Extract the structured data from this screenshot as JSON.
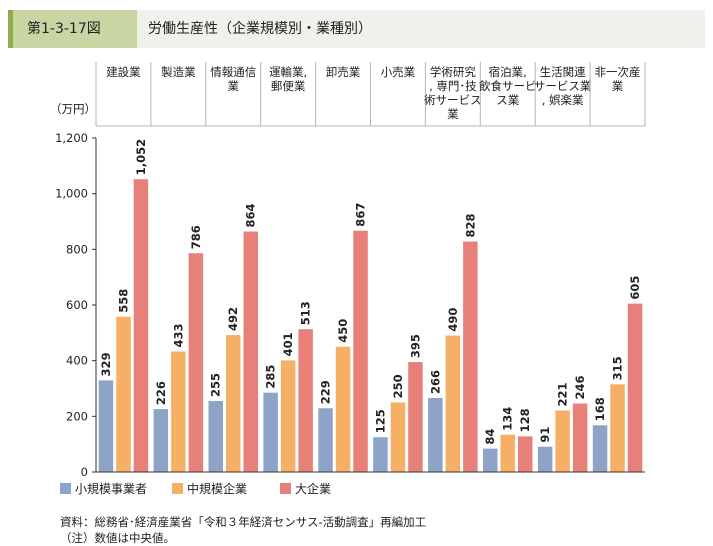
{
  "header": {
    "figure_no": "第1-3-17図",
    "title": "労働生産性（企業規模別・業種別）"
  },
  "chart_data": {
    "type": "bar",
    "ylabel": "（万円）",
    "ylim": [
      0,
      1200
    ],
    "yticks": [
      0,
      200,
      400,
      600,
      800,
      1000,
      1200
    ],
    "ytick_labels": [
      "0",
      "200",
      "400",
      "600",
      "800",
      "1,000",
      "1,200"
    ],
    "grid": false,
    "legend_position": "bottom-left",
    "categories": [
      [
        "建設業"
      ],
      [
        "製造業"
      ],
      [
        "情報通信",
        "業"
      ],
      [
        "運輸業,",
        "郵便業"
      ],
      [
        "卸売業"
      ],
      [
        "小売業"
      ],
      [
        "学術研究",
        ", 専門･技",
        "術サービス",
        "業"
      ],
      [
        "宿泊業,",
        "飲食サービ",
        "ス業"
      ],
      [
        "生活関連",
        "サービス業",
        ", 娯楽業"
      ],
      [
        "非一次産",
        "業"
      ]
    ],
    "series": [
      {
        "name": "小規模事業者",
        "color": "#8ea3c8",
        "values": [
          329,
          226,
          255,
          285,
          229,
          125,
          266,
          84,
          91,
          168
        ],
        "labels": [
          "329",
          "226",
          "255",
          "285",
          "229",
          "125",
          "266",
          "84",
          "91",
          "168"
        ]
      },
      {
        "name": "中規模企業",
        "color": "#f5b066",
        "values": [
          558,
          433,
          492,
          401,
          450,
          250,
          490,
          134,
          221,
          315
        ],
        "labels": [
          "558",
          "433",
          "492",
          "401",
          "450",
          "250",
          "490",
          "134",
          "221",
          "315"
        ]
      },
      {
        "name": "大企業",
        "color": "#e8807a",
        "values": [
          1052,
          786,
          864,
          513,
          867,
          395,
          828,
          128,
          246,
          605
        ],
        "labels": [
          "1,052",
          "786",
          "864",
          "513",
          "867",
          "395",
          "828",
          "128",
          "246",
          "605"
        ]
      }
    ]
  },
  "notes": [
    "資料：総務省･経済産業省「令和３年経済センサス-活動調査」再編加工",
    "（注）数値は中央値。"
  ]
}
